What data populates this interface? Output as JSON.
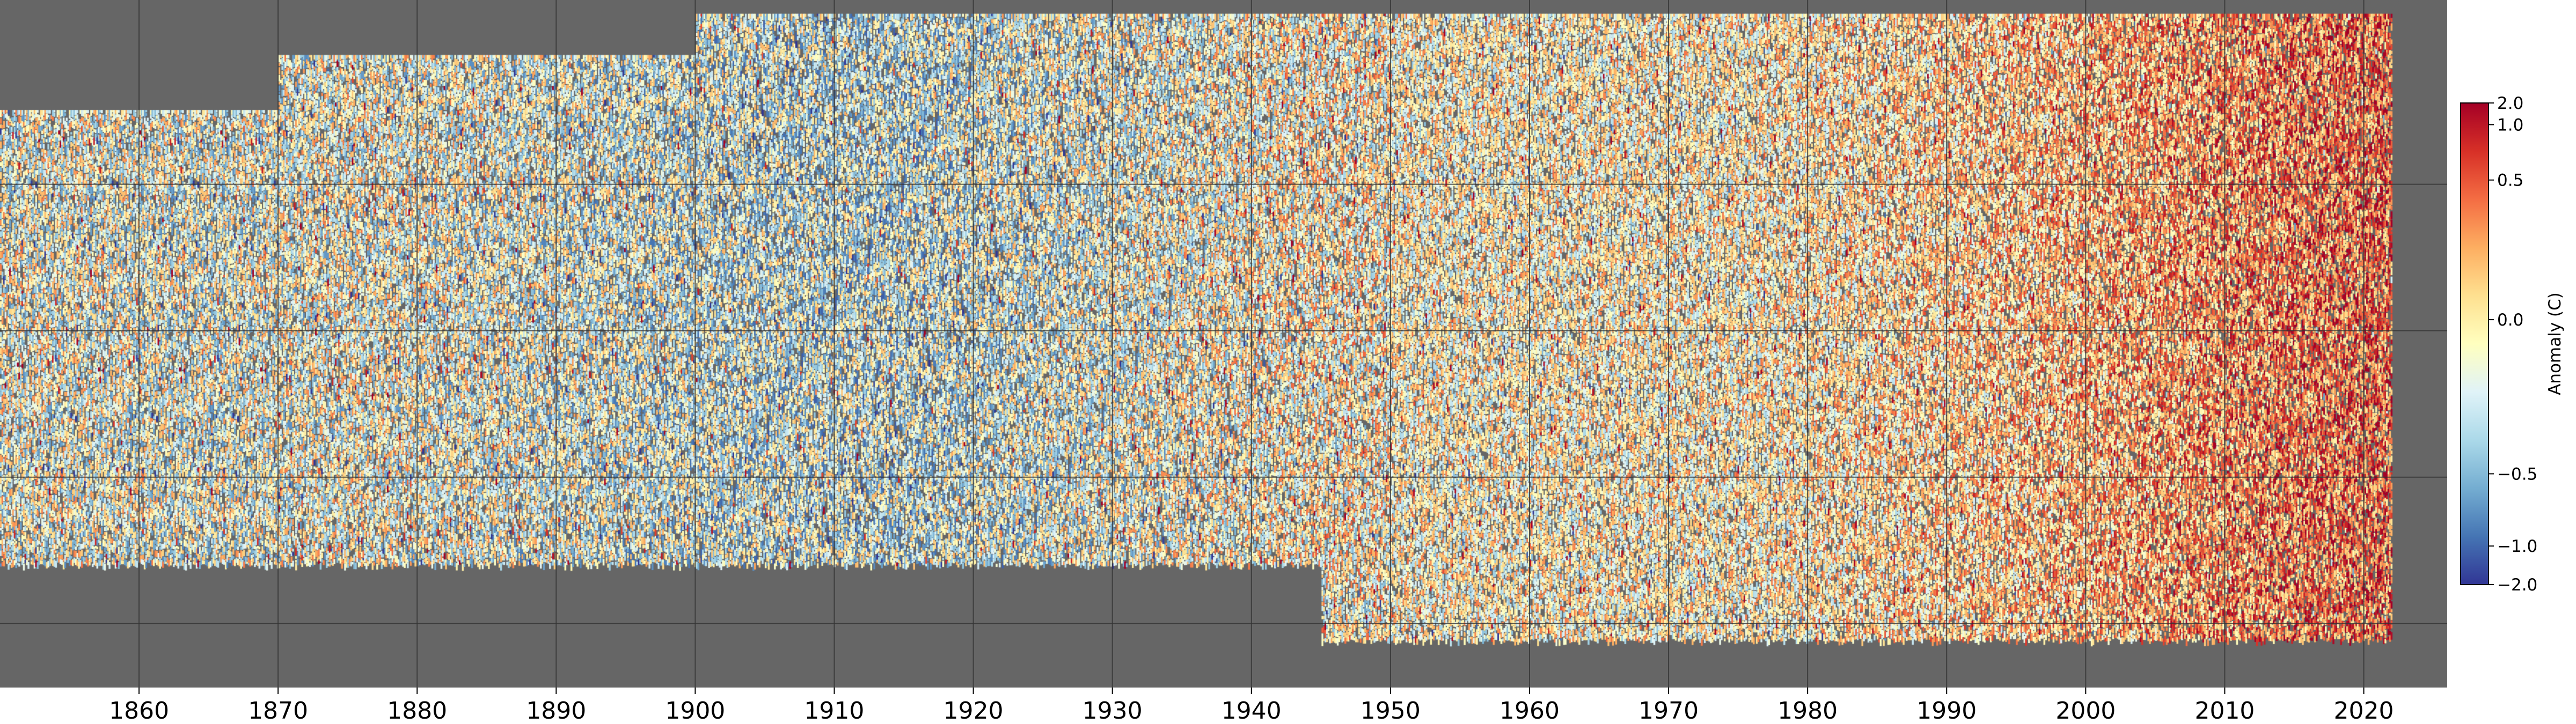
{
  "chart_data": {
    "type": "heatmap",
    "title": "",
    "xlabel": "",
    "ylabel": "",
    "x_ticks": [
      1860,
      1870,
      1880,
      1890,
      1900,
      1910,
      1920,
      1930,
      1940,
      1950,
      1960,
      1970,
      1980,
      1990,
      2000,
      2010,
      2020
    ],
    "xlim": [
      1850,
      2026
    ],
    "data_range": [
      1850,
      2022
    ],
    "grid": true,
    "grid_rows": 5,
    "background_color": "#666666",
    "colormap": "RdYlBu_r",
    "colorbar": {
      "label": "Anomaly (C)",
      "ticks": [
        2.0,
        1.0,
        0.5,
        0.0,
        -0.5,
        -1.0,
        -2.0
      ],
      "tick_labels": [
        "2.0",
        "1.0",
        "0.5",
        "0.0",
        "−0.5",
        "−1.0",
        "−2.0"
      ],
      "range": [
        -2.0,
        2.0
      ],
      "colors": [
        "#313695",
        "#4575b4",
        "#74add1",
        "#abd9e9",
        "#e0f3f8",
        "#ffffbf",
        "#fee090",
        "#fdae61",
        "#f46d43",
        "#d73027",
        "#a50026"
      ]
    },
    "decadal_mean_anomaly": [
      {
        "decade": 1850,
        "anomaly": -0.15
      },
      {
        "decade": 1860,
        "anomaly": -0.25
      },
      {
        "decade": 1870,
        "anomaly": -0.1
      },
      {
        "decade": 1880,
        "anomaly": -0.2
      },
      {
        "decade": 1890,
        "anomaly": -0.35
      },
      {
        "decade": 1900,
        "anomaly": -0.45
      },
      {
        "decade": 1910,
        "anomaly": -0.5
      },
      {
        "decade": 1920,
        "anomaly": -0.3
      },
      {
        "decade": 1930,
        "anomaly": -0.1
      },
      {
        "decade": 1940,
        "anomaly": 0.1
      },
      {
        "decade": 1950,
        "anomaly": 0.05
      },
      {
        "decade": 1960,
        "anomaly": 0.1
      },
      {
        "decade": 1970,
        "anomaly": 0.1
      },
      {
        "decade": 1980,
        "anomaly": 0.3
      },
      {
        "decade": 1990,
        "anomaly": 0.5
      },
      {
        "decade": 2000,
        "anomaly": 0.8
      },
      {
        "decade": 2010,
        "anomaly": 1.1
      },
      {
        "decade": 2020,
        "anomaly": 1.3
      }
    ]
  }
}
